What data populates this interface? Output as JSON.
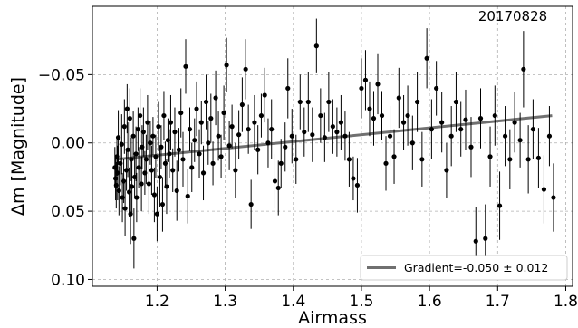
{
  "chart_data": {
    "type": "scatter",
    "title": "",
    "annotation": "20170828",
    "xlabel": "Airmass",
    "ylabel": "Δm [Magnitude]",
    "xlim": [
      1.105,
      1.81
    ],
    "ylim": [
      0.105,
      -0.1
    ],
    "y_inverted": true,
    "xticks": [
      1.2,
      1.3,
      1.4,
      1.5,
      1.6,
      1.7,
      1.8
    ],
    "xtick_labels": [
      "1.2",
      "1.3",
      "1.4",
      "1.5",
      "1.6",
      "1.7",
      "1.8"
    ],
    "yticks": [
      -0.05,
      0.0,
      0.05,
      0.1
    ],
    "ytick_labels": [
      "−0.05",
      "0.00",
      "0.05",
      "0.10"
    ],
    "grid": true,
    "legend_position": "lower-right",
    "fit": {
      "label": "Gradient=-0.050 ± 0.012",
      "x": [
        1.14,
        1.78
      ],
      "y": [
        0.012,
        -0.02
      ],
      "color": "#707070"
    },
    "points": [
      {
        "x": 1.138,
        "y": 0.018,
        "e": 0.015
      },
      {
        "x": 1.139,
        "y": 0.026,
        "e": 0.016
      },
      {
        "x": 1.14,
        "y": 0.031,
        "e": 0.017
      },
      {
        "x": 1.141,
        "y": 0.01,
        "e": 0.014
      },
      {
        "x": 1.142,
        "y": 0.022,
        "e": 0.02
      },
      {
        "x": 1.143,
        "y": -0.004,
        "e": 0.02
      },
      {
        "x": 1.144,
        "y": 0.035,
        "e": 0.018
      },
      {
        "x": 1.146,
        "y": 0.015,
        "e": 0.016
      },
      {
        "x": 1.148,
        "y": 0.001,
        "e": 0.022
      },
      {
        "x": 1.149,
        "y": 0.04,
        "e": 0.018
      },
      {
        "x": 1.151,
        "y": 0.028,
        "e": 0.016
      },
      {
        "x": 1.152,
        "y": -0.012,
        "e": 0.02
      },
      {
        "x": 1.153,
        "y": 0.048,
        "e": 0.02
      },
      {
        "x": 1.155,
        "y": 0.02,
        "e": 0.015
      },
      {
        "x": 1.156,
        "y": -0.025,
        "e": 0.018
      },
      {
        "x": 1.157,
        "y": 0.005,
        "e": 0.02
      },
      {
        "x": 1.159,
        "y": 0.036,
        "e": 0.018
      },
      {
        "x": 1.16,
        "y": -0.018,
        "e": 0.022
      },
      {
        "x": 1.161,
        "y": 0.052,
        "e": 0.022
      },
      {
        "x": 1.162,
        "y": 0.012,
        "e": 0.016
      },
      {
        "x": 1.163,
        "y": 0.032,
        "e": 0.02
      },
      {
        "x": 1.165,
        "y": -0.005,
        "e": 0.018
      },
      {
        "x": 1.166,
        "y": 0.07,
        "e": 0.022
      },
      {
        "x": 1.167,
        "y": 0.025,
        "e": 0.016
      },
      {
        "x": 1.169,
        "y": 0.008,
        "e": 0.02
      },
      {
        "x": 1.17,
        "y": 0.04,
        "e": 0.018
      },
      {
        "x": 1.172,
        "y": -0.01,
        "e": 0.016
      },
      {
        "x": 1.173,
        "y": 0.018,
        "e": 0.015
      },
      {
        "x": 1.175,
        "y": -0.02,
        "e": 0.02
      },
      {
        "x": 1.177,
        "y": 0.03,
        "e": 0.02
      },
      {
        "x": 1.178,
        "y": 0.003,
        "e": 0.016
      },
      {
        "x": 1.18,
        "y": -0.008,
        "e": 0.018
      },
      {
        "x": 1.182,
        "y": 0.022,
        "e": 0.016
      },
      {
        "x": 1.184,
        "y": 0.012,
        "e": 0.018
      },
      {
        "x": 1.186,
        "y": -0.015,
        "e": 0.02
      },
      {
        "x": 1.188,
        "y": 0.03,
        "e": 0.022
      },
      {
        "x": 1.19,
        "y": 0.0,
        "e": 0.016
      },
      {
        "x": 1.192,
        "y": 0.02,
        "e": 0.018
      },
      {
        "x": 1.194,
        "y": -0.005,
        "e": 0.014
      },
      {
        "x": 1.196,
        "y": 0.038,
        "e": 0.02
      },
      {
        "x": 1.198,
        "y": 0.01,
        "e": 0.016
      },
      {
        "x": 1.2,
        "y": 0.052,
        "e": 0.02
      },
      {
        "x": 1.202,
        "y": -0.012,
        "e": 0.018
      },
      {
        "x": 1.204,
        "y": 0.025,
        "e": 0.022
      },
      {
        "x": 1.206,
        "y": 0.003,
        "e": 0.016
      },
      {
        "x": 1.208,
        "y": 0.045,
        "e": 0.02
      },
      {
        "x": 1.21,
        "y": -0.02,
        "e": 0.018
      },
      {
        "x": 1.212,
        "y": 0.015,
        "e": 0.016
      },
      {
        "x": 1.214,
        "y": 0.032,
        "e": 0.02
      },
      {
        "x": 1.216,
        "y": -0.002,
        "e": 0.016
      },
      {
        "x": 1.218,
        "y": 0.008,
        "e": 0.018
      },
      {
        "x": 1.22,
        "y": -0.015,
        "e": 0.02
      },
      {
        "x": 1.223,
        "y": 0.02,
        "e": 0.016
      },
      {
        "x": 1.226,
        "y": -0.008,
        "e": 0.018
      },
      {
        "x": 1.229,
        "y": 0.035,
        "e": 0.022
      },
      {
        "x": 1.232,
        "y": 0.005,
        "e": 0.016
      },
      {
        "x": 1.235,
        "y": -0.022,
        "e": 0.018
      },
      {
        "x": 1.238,
        "y": 0.012,
        "e": 0.02
      },
      {
        "x": 1.242,
        "y": -0.056,
        "e": 0.02
      },
      {
        "x": 1.245,
        "y": 0.039,
        "e": 0.02
      },
      {
        "x": 1.248,
        "y": -0.01,
        "e": 0.016
      },
      {
        "x": 1.251,
        "y": 0.018,
        "e": 0.018
      },
      {
        "x": 1.255,
        "y": -0.002,
        "e": 0.016
      },
      {
        "x": 1.258,
        "y": -0.025,
        "e": 0.02
      },
      {
        "x": 1.262,
        "y": 0.008,
        "e": 0.018
      },
      {
        "x": 1.265,
        "y": -0.015,
        "e": 0.016
      },
      {
        "x": 1.268,
        "y": 0.022,
        "e": 0.02
      },
      {
        "x": 1.272,
        "y": -0.03,
        "e": 0.02
      },
      {
        "x": 1.275,
        "y": 0.0,
        "e": 0.016
      },
      {
        "x": 1.279,
        "y": -0.018,
        "e": 0.018
      },
      {
        "x": 1.282,
        "y": 0.015,
        "e": 0.016
      },
      {
        "x": 1.286,
        "y": -0.033,
        "e": 0.02
      },
      {
        "x": 1.29,
        "y": -0.005,
        "e": 0.018
      },
      {
        "x": 1.294,
        "y": 0.01,
        "e": 0.016
      },
      {
        "x": 1.298,
        "y": -0.022,
        "e": 0.02
      },
      {
        "x": 1.302,
        "y": -0.057,
        "e": 0.02
      },
      {
        "x": 1.306,
        "y": 0.002,
        "e": 0.018
      },
      {
        "x": 1.31,
        "y": -0.012,
        "e": 0.016
      },
      {
        "x": 1.315,
        "y": 0.02,
        "e": 0.02
      },
      {
        "x": 1.32,
        "y": -0.006,
        "e": 0.018
      },
      {
        "x": 1.325,
        "y": -0.028,
        "e": 0.02
      },
      {
        "x": 1.33,
        "y": -0.054,
        "e": 0.022
      },
      {
        "x": 1.334,
        "y": -0.01,
        "e": 0.018
      },
      {
        "x": 1.338,
        "y": 0.045,
        "e": 0.018
      },
      {
        "x": 1.343,
        "y": -0.015,
        "e": 0.02
      },
      {
        "x": 1.348,
        "y": 0.005,
        "e": 0.018
      },
      {
        "x": 1.353,
        "y": -0.02,
        "e": 0.016
      },
      {
        "x": 1.358,
        "y": -0.035,
        "e": 0.02
      },
      {
        "x": 1.363,
        "y": 0.0,
        "e": 0.018
      },
      {
        "x": 1.368,
        "y": -0.01,
        "e": 0.022
      },
      {
        "x": 1.373,
        "y": 0.028,
        "e": 0.02
      },
      {
        "x": 1.378,
        "y": 0.033,
        "e": 0.02
      },
      {
        "x": 1.382,
        "y": 0.015,
        "e": 0.018
      },
      {
        "x": 1.388,
        "y": 0.003,
        "e": 0.018
      },
      {
        "x": 1.392,
        "y": -0.04,
        "e": 0.022
      },
      {
        "x": 1.398,
        "y": -0.005,
        "e": 0.02
      },
      {
        "x": 1.404,
        "y": 0.012,
        "e": 0.018
      },
      {
        "x": 1.41,
        "y": -0.03,
        "e": 0.02
      },
      {
        "x": 1.416,
        "y": -0.008,
        "e": 0.018
      },
      {
        "x": 1.422,
        "y": -0.03,
        "e": 0.022
      },
      {
        "x": 1.428,
        "y": -0.006,
        "e": 0.02
      },
      {
        "x": 1.434,
        "y": -0.071,
        "e": 0.02
      },
      {
        "x": 1.44,
        "y": -0.02,
        "e": 0.02
      },
      {
        "x": 1.446,
        "y": -0.004,
        "e": 0.018
      },
      {
        "x": 1.452,
        "y": -0.03,
        "e": 0.022
      },
      {
        "x": 1.458,
        "y": -0.012,
        "e": 0.02
      },
      {
        "x": 1.464,
        "y": -0.008,
        "e": 0.018
      },
      {
        "x": 1.47,
        "y": -0.015,
        "e": 0.02
      },
      {
        "x": 1.476,
        "y": -0.005,
        "e": 0.018
      },
      {
        "x": 1.482,
        "y": 0.012,
        "e": 0.02
      },
      {
        "x": 1.488,
        "y": 0.026,
        "e": 0.016
      },
      {
        "x": 1.494,
        "y": 0.031,
        "e": 0.02
      },
      {
        "x": 1.5,
        "y": -0.04,
        "e": 0.022
      },
      {
        "x": 1.506,
        "y": -0.046,
        "e": 0.022
      },
      {
        "x": 1.512,
        "y": -0.025,
        "e": 0.02
      },
      {
        "x": 1.518,
        "y": -0.018,
        "e": 0.02
      },
      {
        "x": 1.524,
        "y": -0.043,
        "e": 0.022
      },
      {
        "x": 1.53,
        "y": -0.02,
        "e": 0.018
      },
      {
        "x": 1.536,
        "y": 0.015,
        "e": 0.02
      },
      {
        "x": 1.542,
        "y": -0.005,
        "e": 0.022
      },
      {
        "x": 1.548,
        "y": 0.01,
        "e": 0.02
      },
      {
        "x": 1.555,
        "y": -0.033,
        "e": 0.022
      },
      {
        "x": 1.562,
        "y": -0.015,
        "e": 0.02
      },
      {
        "x": 1.568,
        "y": -0.02,
        "e": 0.022
      },
      {
        "x": 1.575,
        "y": 0.0,
        "e": 0.02
      },
      {
        "x": 1.582,
        "y": -0.03,
        "e": 0.022
      },
      {
        "x": 1.589,
        "y": 0.012,
        "e": 0.02
      },
      {
        "x": 1.596,
        "y": -0.062,
        "e": 0.022
      },
      {
        "x": 1.603,
        "y": -0.01,
        "e": 0.022
      },
      {
        "x": 1.61,
        "y": -0.04,
        "e": 0.02
      },
      {
        "x": 1.618,
        "y": -0.015,
        "e": 0.022
      },
      {
        "x": 1.625,
        "y": 0.02,
        "e": 0.02
      },
      {
        "x": 1.632,
        "y": -0.005,
        "e": 0.022
      },
      {
        "x": 1.639,
        "y": -0.03,
        "e": 0.022
      },
      {
        "x": 1.646,
        "y": -0.01,
        "e": 0.02
      },
      {
        "x": 1.653,
        "y": -0.017,
        "e": 0.022
      },
      {
        "x": 1.661,
        "y": 0.003,
        "e": 0.022
      },
      {
        "x": 1.668,
        "y": 0.072,
        "e": 0.025
      },
      {
        "x": 1.675,
        "y": -0.018,
        "e": 0.022
      },
      {
        "x": 1.682,
        "y": 0.07,
        "e": 0.025
      },
      {
        "x": 1.689,
        "y": 0.01,
        "e": 0.022
      },
      {
        "x": 1.696,
        "y": -0.02,
        "e": 0.022
      },
      {
        "x": 1.703,
        "y": 0.046,
        "e": 0.025
      },
      {
        "x": 1.711,
        "y": -0.005,
        "e": 0.022
      },
      {
        "x": 1.718,
        "y": 0.012,
        "e": 0.022
      },
      {
        "x": 1.725,
        "y": -0.015,
        "e": 0.022
      },
      {
        "x": 1.733,
        "y": -0.002,
        "e": 0.02
      },
      {
        "x": 1.738,
        "y": -0.054,
        "e": 0.028
      },
      {
        "x": 1.745,
        "y": 0.012,
        "e": 0.025
      },
      {
        "x": 1.752,
        "y": -0.01,
        "e": 0.022
      },
      {
        "x": 1.76,
        "y": 0.011,
        "e": 0.022
      },
      {
        "x": 1.768,
        "y": 0.034,
        "e": 0.025
      },
      {
        "x": 1.776,
        "y": -0.005,
        "e": 0.022
      },
      {
        "x": 1.782,
        "y": 0.04,
        "e": 0.025
      }
    ]
  }
}
